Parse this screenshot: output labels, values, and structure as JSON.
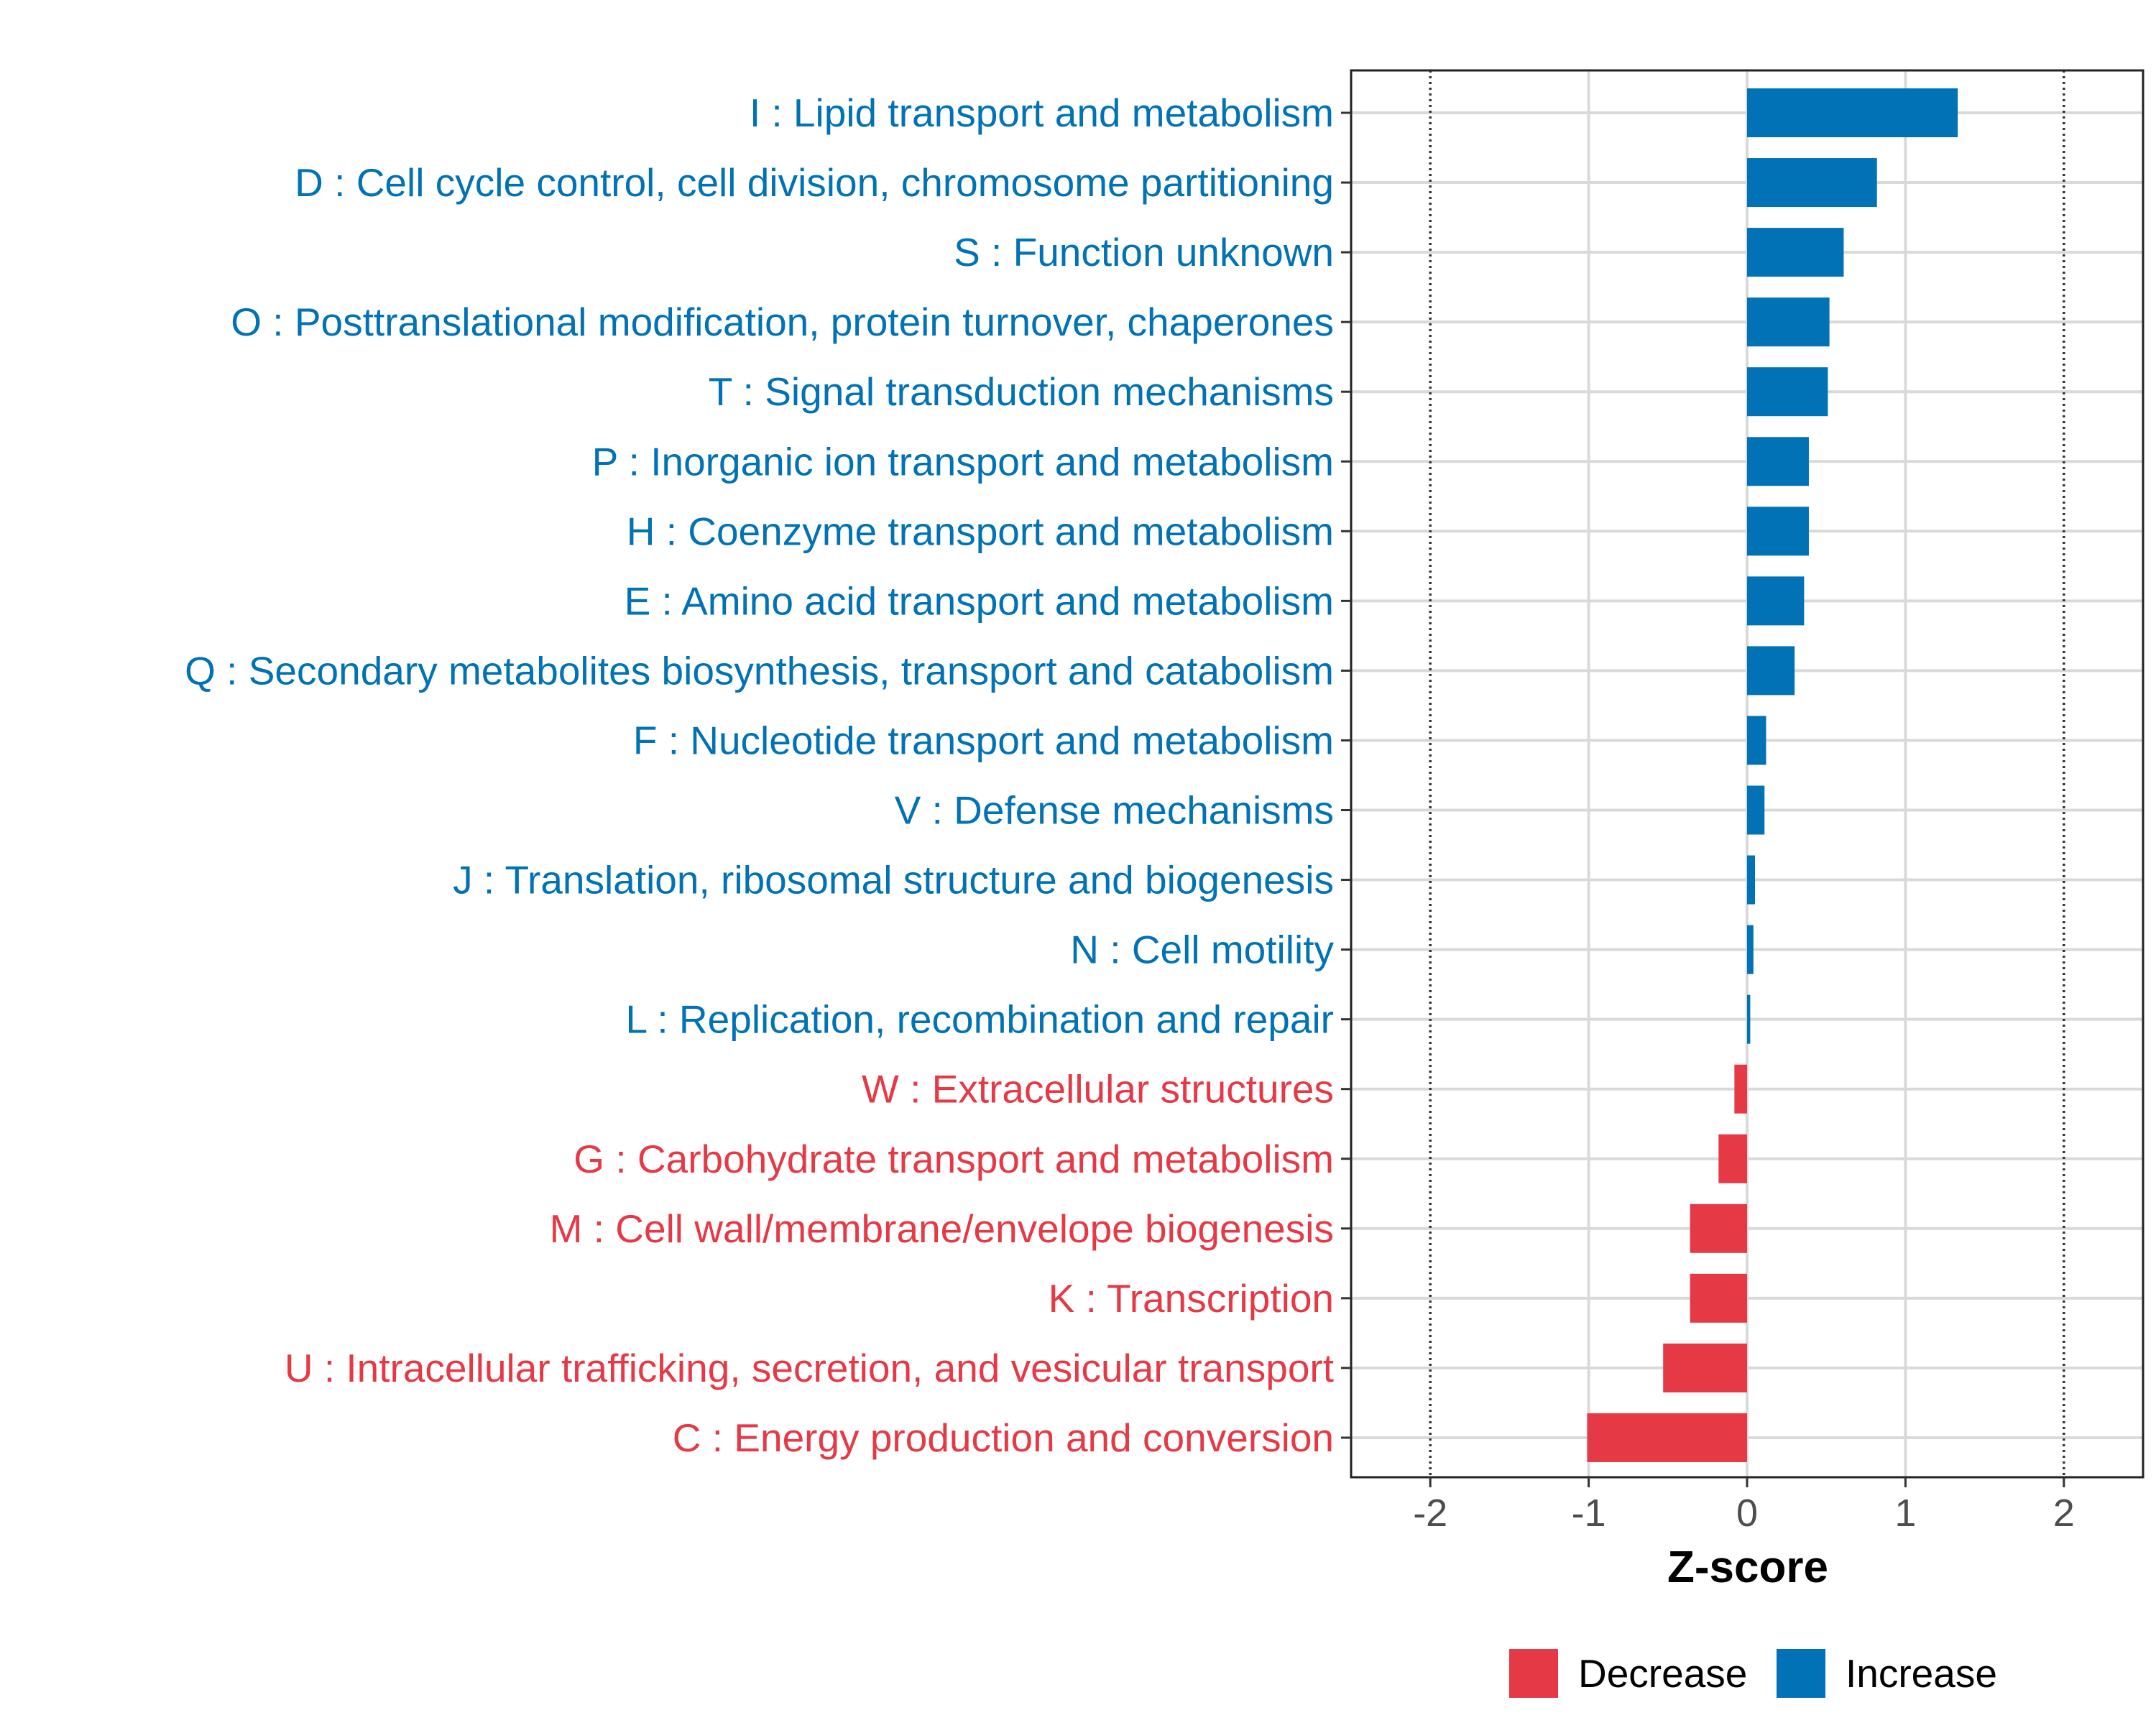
{
  "chart_data": {
    "type": "bar",
    "orientation": "horizontal",
    "title": "",
    "xlabel": "Z-score",
    "ylabel": "",
    "xlim": [
      -2.5,
      2.5
    ],
    "x_ticks": [
      -2,
      -1,
      0,
      1,
      2
    ],
    "x_tick_labels": [
      "-2",
      "-1",
      "0",
      "1",
      "2"
    ],
    "reference_lines": [
      -2,
      2
    ],
    "grid": true,
    "colors": {
      "Increase": "#0072B5",
      "Decrease": "#E63946"
    },
    "categories": [
      "I : Lipid transport and metabolism",
      "D : Cell cycle control, cell division, chromosome partitioning",
      "S : Function unknown",
      "O : Posttranslational modification, protein turnover, chaperones",
      "T : Signal transduction mechanisms",
      "P : Inorganic ion transport and metabolism",
      "H : Coenzyme transport and metabolism",
      "E : Amino acid transport and metabolism",
      "Q : Secondary metabolites biosynthesis, transport and catabolism",
      "F : Nucleotide transport and metabolism",
      "V : Defense mechanisms",
      "J : Translation, ribosomal structure and biogenesis",
      "N : Cell motility",
      "L : Replication, recombination and repair",
      "W : Extracellular structures",
      "G : Carbohydrate transport and metabolism",
      "M : Cell wall/membrane/envelope biogenesis",
      "K : Transcription",
      "U : Intracellular trafficking, secretion, and vesicular transport",
      "C : Energy production and conversion"
    ],
    "values": [
      1.33,
      0.82,
      0.61,
      0.52,
      0.51,
      0.39,
      0.39,
      0.36,
      0.3,
      0.12,
      0.11,
      0.05,
      0.04,
      0.02,
      -0.08,
      -0.18,
      -0.36,
      -0.36,
      -0.53,
      -1.01
    ],
    "groups": [
      "Increase",
      "Increase",
      "Increase",
      "Increase",
      "Increase",
      "Increase",
      "Increase",
      "Increase",
      "Increase",
      "Increase",
      "Increase",
      "Increase",
      "Increase",
      "Increase",
      "Decrease",
      "Decrease",
      "Decrease",
      "Decrease",
      "Decrease",
      "Decrease"
    ],
    "legend": {
      "position": "bottom-right",
      "entries": [
        {
          "name": "Decrease",
          "color": "#E63946"
        },
        {
          "name": "Increase",
          "color": "#0072B5"
        }
      ]
    }
  }
}
